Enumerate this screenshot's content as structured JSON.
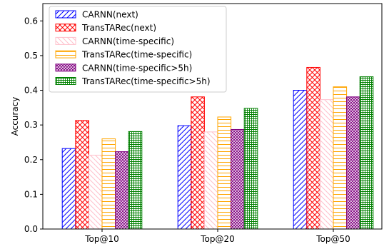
{
  "chart_data": {
    "type": "bar",
    "title": "",
    "xlabel": "",
    "ylabel": "Accuracy",
    "ylim": [
      0,
      0.65
    ],
    "yticks": [
      "0.0",
      "0.1",
      "0.2",
      "0.3",
      "0.4",
      "0.5",
      "0.6"
    ],
    "categories": [
      "Top@10",
      "Top@20",
      "Top@50"
    ],
    "legend_position": "top-left",
    "series": [
      {
        "name": "CARNN(next)",
        "values": [
          0.232,
          0.298,
          0.4
        ],
        "color": "#0000ff",
        "pattern": "diagonal-forward"
      },
      {
        "name": "TransTARec(next)",
        "values": [
          0.313,
          0.381,
          0.466
        ],
        "color": "#ff0000",
        "pattern": "crosshatch-diagonal"
      },
      {
        "name": "CARNN(time-specific)",
        "values": [
          0.213,
          0.28,
          0.373
        ],
        "color": "#ffc0cb",
        "pattern": "diagonal-backward"
      },
      {
        "name": "TransTARec(time-specific)",
        "values": [
          0.26,
          0.323,
          0.41
        ],
        "color": "#ffa500",
        "pattern": "horizontal"
      },
      {
        "name": "CARNN(time-specific>5h)",
        "values": [
          0.223,
          0.287,
          0.381
        ],
        "color": "#800080",
        "pattern": "dense-crosshatch"
      },
      {
        "name": "TransTARec(time-specific>5h)",
        "values": [
          0.281,
          0.348,
          0.439
        ],
        "color": "#008000",
        "pattern": "grid"
      }
    ]
  }
}
